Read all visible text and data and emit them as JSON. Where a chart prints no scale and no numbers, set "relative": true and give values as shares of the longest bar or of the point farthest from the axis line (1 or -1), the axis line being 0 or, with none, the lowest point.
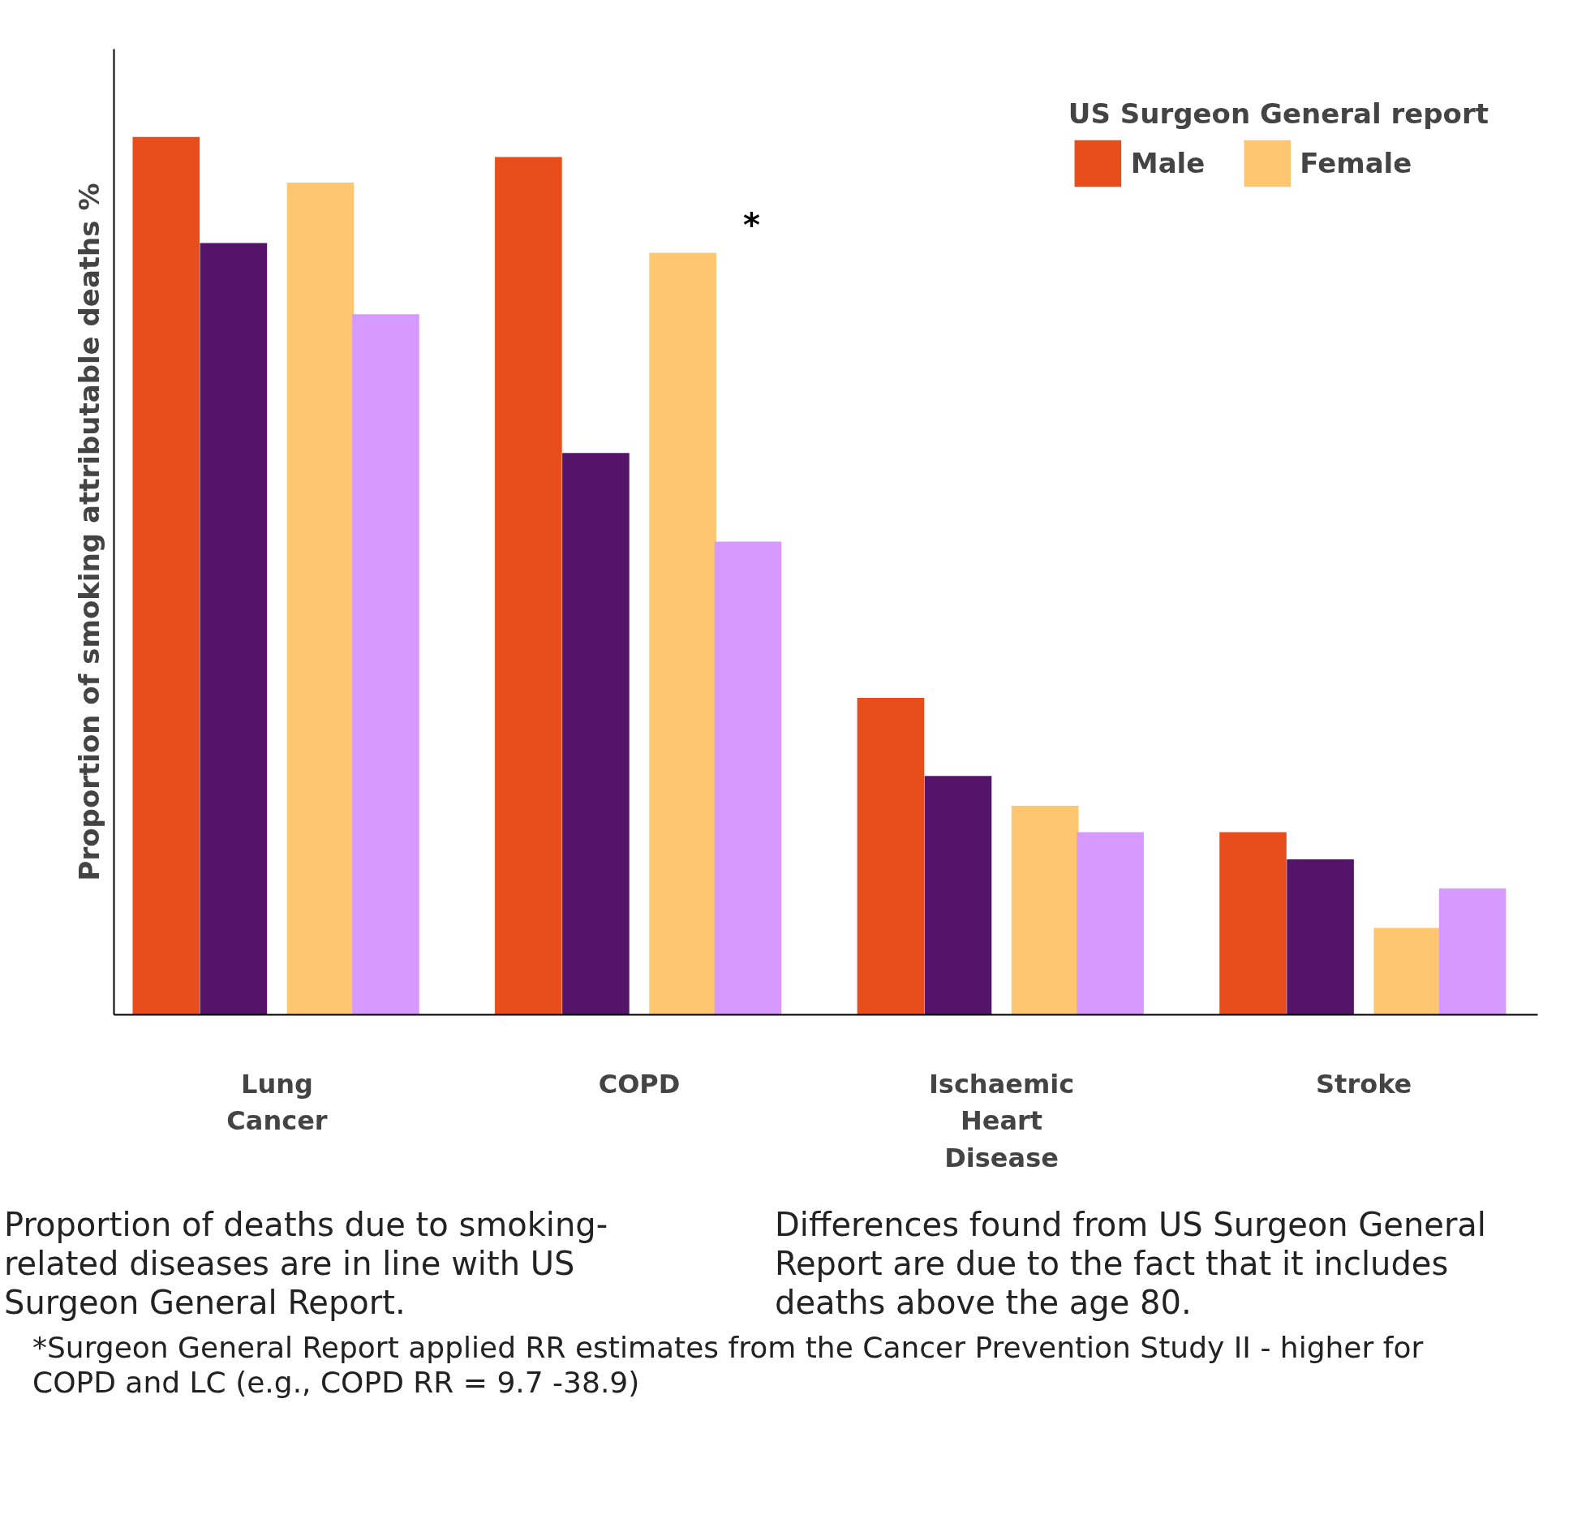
{
  "chart_data": {
    "type": "bar",
    "relative": true,
    "ylabel": "Proportion of smoking attributable deaths %",
    "categories": [
      "Lung Cancer",
      "COPD",
      "Ischaemic Heart Disease",
      "Stroke"
    ],
    "series": [
      {
        "name": "Male",
        "color": "#e84e1c",
        "values": [
          1,
          0.977,
          0.361,
          0.208
        ]
      },
      {
        "color": "#53146a",
        "values": [
          0.879,
          0.64,
          0.272,
          0.177
        ]
      },
      {
        "name": "Female",
        "color": "#fec76f",
        "values": [
          0.948,
          0.868,
          0.238,
          0.099
        ]
      },
      {
        "color": "#d699fd",
        "values": [
          0.798,
          0.539,
          0.208,
          0.144
        ]
      }
    ],
    "legend": "top right",
    "grid": false,
    "legend_title": "US Surgeon General report",
    "annotations": [
      "*",
      "Proportion of deaths due to smoking-related diseases are in line with US Surgeon General Report.",
      "Differences found from US Surgeon General Report are due to the fact that it includes deaths above the age 80.",
      "*Surgeon General Report applied RR estimates from the Cancer Prevention Study II - higher for COPD and LC (e.g., COPD RR = 9.7 -38.9)"
    ]
  }
}
